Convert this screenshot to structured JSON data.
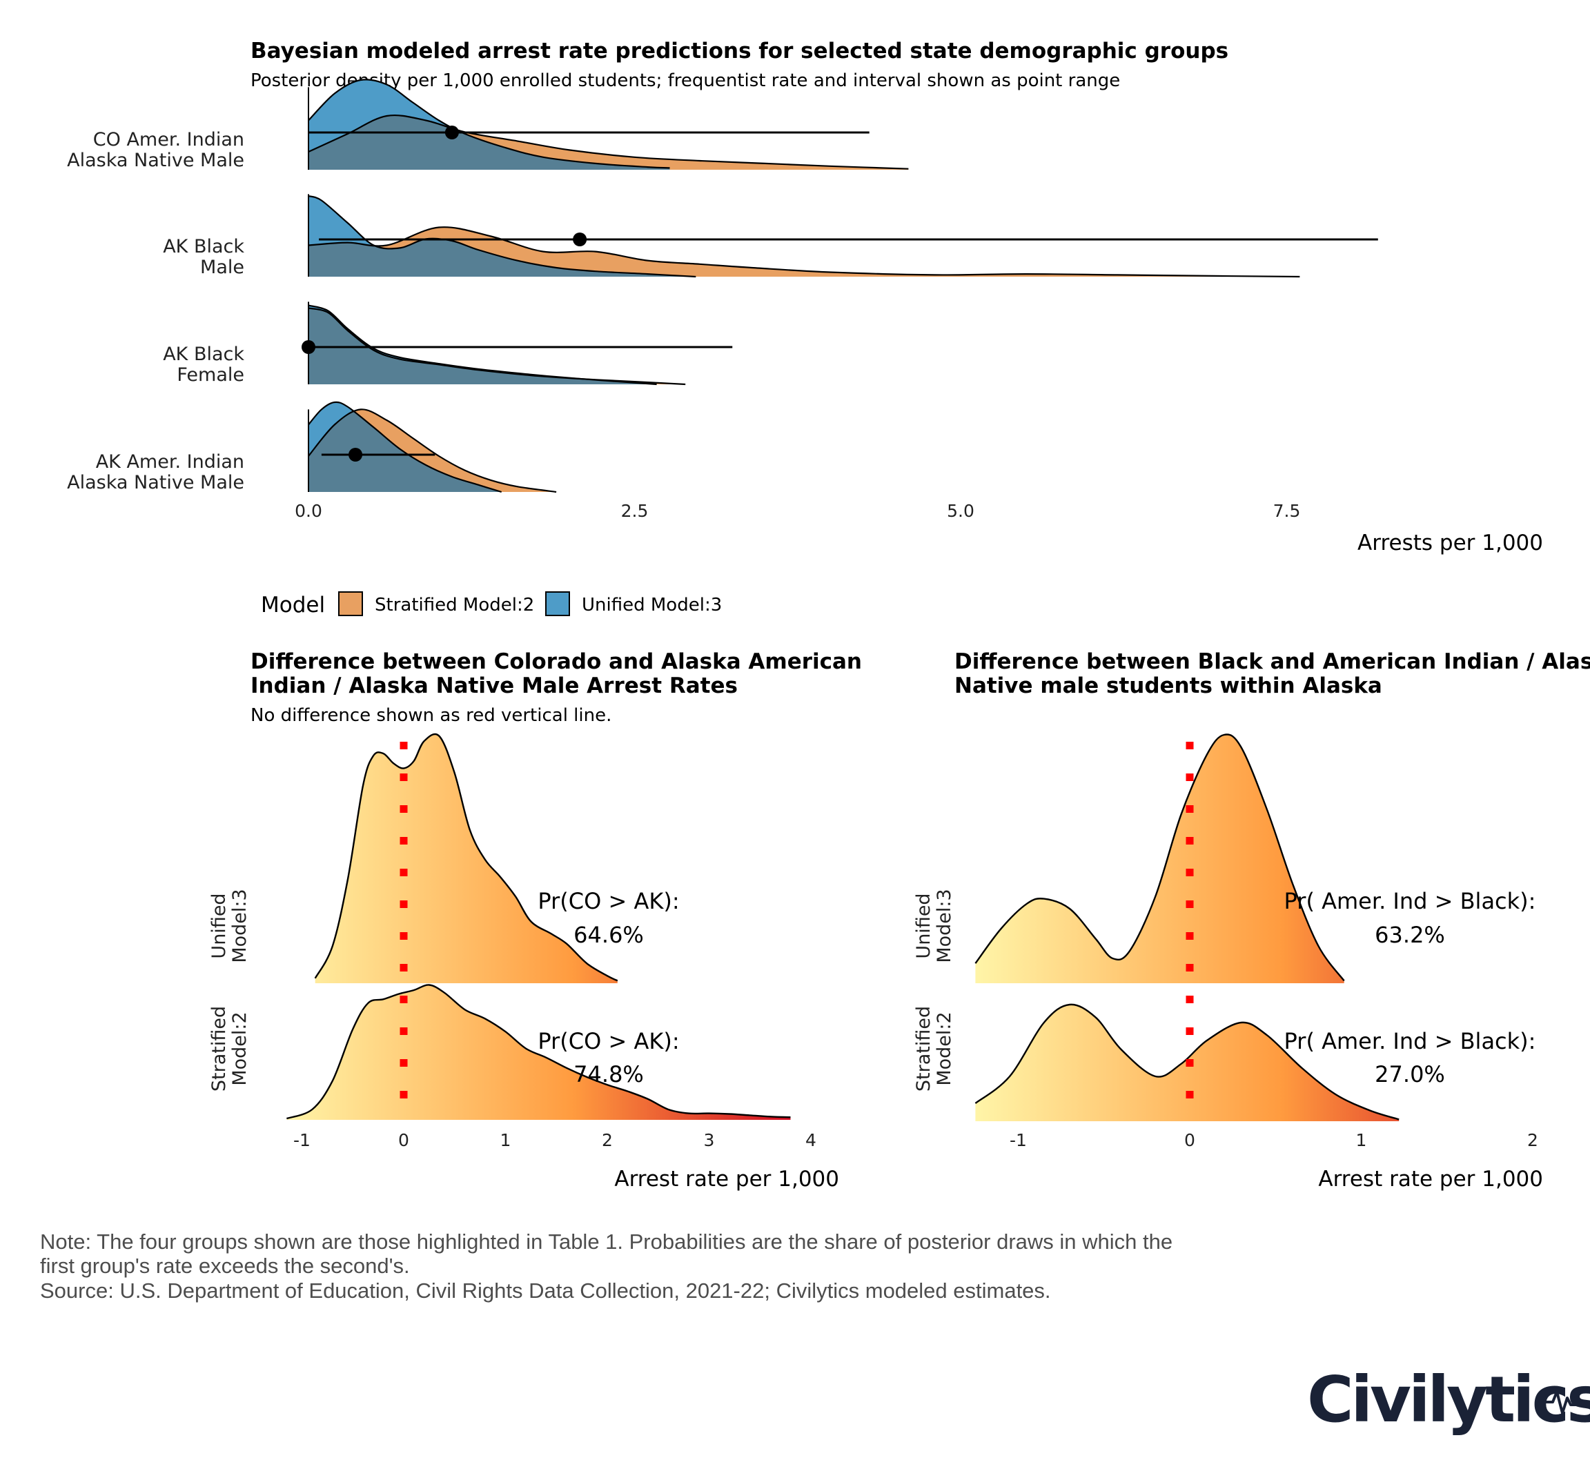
{
  "colors": {
    "stratified": "#e8a061",
    "unified": "#4e9cc8",
    "overlap": "#567f94",
    "zero_line": "#ff0000",
    "note_text": "#4d4d4d",
    "logo": "#1a2236",
    "gradient_low": "#fff5a8",
    "gradient_mid": "#ff9b3f",
    "gradient_high": "#cc0020"
  },
  "top_panel": {
    "title": "Bayesian modeled arrest rate predictions for selected state demographic groups",
    "subtitle": "Posterior density per 1,000 enrolled students; frequentist rate and interval shown as point range",
    "xlabel": "Arrests per 1,000"
  },
  "legend": {
    "title": "Model",
    "items": [
      {
        "label": "Stratified Model:2",
        "color": "#e8a061"
      },
      {
        "label": "Unified Model:3",
        "color": "#4e9cc8"
      }
    ]
  },
  "left_panel": {
    "title_line1": "Difference between Colorado and Alaska American",
    "title_line2": "Indian / Alaska Native Male Arrest Rates",
    "subtitle": "No difference shown as red vertical line.",
    "xlabel": "Arrest rate per 1,000",
    "row_labels": [
      [
        "Unified",
        "Model:3"
      ],
      [
        "Stratified",
        "Model:2"
      ]
    ],
    "prob_label": "Pr(CO > AK):",
    "prob_values": [
      "64.6%",
      "74.8%"
    ]
  },
  "right_panel": {
    "title_line1": "Difference between Black and American Indian / Alaska",
    "title_line2": "Native male students within Alaska",
    "xlabel": "Arrest rate per 1,000",
    "row_labels": [
      [
        "Unified",
        "Model:3"
      ],
      [
        "Stratified",
        "Model:2"
      ]
    ],
    "prob_label": "Pr( Amer. Ind > Black):",
    "prob_values": [
      "63.2%",
      "27.0%"
    ]
  },
  "footnote": {
    "line1": "Note: The four groups shown are those highlighted in Table 1. Probabilities are the share of posterior draws in which the",
    "line2": "first group's rate exceeds the second's.",
    "line3": "Source: U.S. Department of Education, Civil Rights Data Collection, 2021-22; Civilytics modeled estimates."
  },
  "logo": {
    "text": "Civilytics"
  },
  "chart_data": [
    {
      "type": "ridgeline",
      "title": "Bayesian modeled arrest rate predictions for selected state demographic groups",
      "subtitle": "Posterior density per 1,000 enrolled students; frequentist rate and interval shown as point range",
      "xlabel": "Arrests per 1,000",
      "xlim": [
        0,
        9.5
      ],
      "x_ticks": [
        0,
        2.5,
        5,
        7.5
      ],
      "x_tick_labels": [
        "0.0",
        "2.5",
        "5.0",
        "7.5"
      ],
      "groups": [
        {
          "label_lines": [
            "CO Amer. Indian",
            "Alaska Native Male"
          ],
          "point": 1.1,
          "interval": [
            0.0,
            4.3
          ],
          "stratified": [
            [
              0,
              0.2
            ],
            [
              0.3,
              0.4
            ],
            [
              0.6,
              0.6
            ],
            [
              0.9,
              0.55
            ],
            [
              1.2,
              0.42
            ],
            [
              1.6,
              0.32
            ],
            [
              2.0,
              0.22
            ],
            [
              2.5,
              0.14
            ],
            [
              3.0,
              0.1
            ],
            [
              3.5,
              0.07
            ],
            [
              4.0,
              0.04
            ],
            [
              4.6,
              0.01
            ]
          ],
          "unified": [
            [
              0,
              0.55
            ],
            [
              0.2,
              0.85
            ],
            [
              0.4,
              1.0
            ],
            [
              0.6,
              0.95
            ],
            [
              0.8,
              0.75
            ],
            [
              1.0,
              0.55
            ],
            [
              1.2,
              0.4
            ],
            [
              1.5,
              0.25
            ],
            [
              1.8,
              0.14
            ],
            [
              2.2,
              0.07
            ],
            [
              2.6,
              0.03
            ],
            [
              2.77,
              0.02
            ]
          ]
        },
        {
          "label_lines": [
            "AK Black",
            "Male"
          ],
          "point": 2.08,
          "interval": [
            0.08,
            8.2
          ],
          "stratified": [
            [
              0,
              0.35
            ],
            [
              0.3,
              0.38
            ],
            [
              0.6,
              0.35
            ],
            [
              1.0,
              0.55
            ],
            [
              1.4,
              0.45
            ],
            [
              1.8,
              0.28
            ],
            [
              2.2,
              0.28
            ],
            [
              2.6,
              0.18
            ],
            [
              3.0,
              0.14
            ],
            [
              3.4,
              0.1
            ],
            [
              4.0,
              0.05
            ],
            [
              4.8,
              0.02
            ],
            [
              5.5,
              0.03
            ],
            [
              6.2,
              0.02
            ],
            [
              7.0,
              0.008
            ],
            [
              7.6,
              0.0
            ]
          ],
          "unified": [
            [
              0,
              0.9
            ],
            [
              0.1,
              0.85
            ],
            [
              0.3,
              0.6
            ],
            [
              0.5,
              0.35
            ],
            [
              0.7,
              0.32
            ],
            [
              0.9,
              0.42
            ],
            [
              1.1,
              0.4
            ],
            [
              1.3,
              0.3
            ],
            [
              1.6,
              0.18
            ],
            [
              1.9,
              0.1
            ],
            [
              2.2,
              0.06
            ],
            [
              2.6,
              0.03
            ],
            [
              2.97,
              0.0
            ]
          ]
        },
        {
          "label_lines": [
            "AK Black",
            "Female"
          ],
          "point": 0.0,
          "interval": [
            0.0,
            3.25
          ],
          "stratified": [
            [
              0,
              0.85
            ],
            [
              0.15,
              0.8
            ],
            [
              0.3,
              0.6
            ],
            [
              0.5,
              0.38
            ],
            [
              0.7,
              0.28
            ],
            [
              1.0,
              0.22
            ],
            [
              1.3,
              0.16
            ],
            [
              1.7,
              0.1
            ],
            [
              2.1,
              0.06
            ],
            [
              2.5,
              0.03
            ],
            [
              2.89,
              0.0
            ]
          ],
          "unified": [
            [
              0,
              0.88
            ],
            [
              0.15,
              0.82
            ],
            [
              0.3,
              0.62
            ],
            [
              0.5,
              0.4
            ],
            [
              0.7,
              0.3
            ],
            [
              1.0,
              0.23
            ],
            [
              1.3,
              0.17
            ],
            [
              1.7,
              0.11
            ],
            [
              2.1,
              0.06
            ],
            [
              2.67,
              0.0
            ]
          ]
        },
        {
          "label_lines": [
            "AK Amer. Indian",
            "Alaska Native Male"
          ],
          "point": 0.36,
          "interval": [
            0.1,
            0.97
          ],
          "stratified": [
            [
              0,
              0.4
            ],
            [
              0.2,
              0.75
            ],
            [
              0.4,
              0.92
            ],
            [
              0.6,
              0.8
            ],
            [
              0.8,
              0.6
            ],
            [
              1.0,
              0.4
            ],
            [
              1.2,
              0.24
            ],
            [
              1.4,
              0.13
            ],
            [
              1.6,
              0.06
            ],
            [
              1.9,
              0.0
            ]
          ],
          "unified": [
            [
              0,
              0.75
            ],
            [
              0.1,
              0.92
            ],
            [
              0.2,
              1.0
            ],
            [
              0.3,
              0.95
            ],
            [
              0.5,
              0.72
            ],
            [
              0.7,
              0.48
            ],
            [
              0.9,
              0.3
            ],
            [
              1.1,
              0.17
            ],
            [
              1.3,
              0.08
            ],
            [
              1.48,
              0.0
            ]
          ]
        }
      ]
    },
    {
      "type": "density",
      "title": "Difference between Colorado and Alaska American Indian / Alaska Native Male Arrest Rates",
      "subtitle": "No difference shown as red vertical line.",
      "xlabel": "Arrest rate per 1,000",
      "xlim": [
        -1,
        4
      ],
      "x_ticks": [
        -1,
        0,
        1,
        2,
        3,
        4
      ],
      "reference_line": 0,
      "series": [
        {
          "name": "Unified Model:3",
          "probability_text": "Pr(CO > AK): 64.6%",
          "points": [
            [
              -0.87,
              0.02
            ],
            [
              -0.7,
              0.15
            ],
            [
              -0.55,
              0.42
            ],
            [
              -0.4,
              0.8
            ],
            [
              -0.3,
              0.92
            ],
            [
              -0.2,
              0.93
            ],
            [
              -0.1,
              0.89
            ],
            [
              0.0,
              0.87
            ],
            [
              0.1,
              0.9
            ],
            [
              0.2,
              0.98
            ],
            [
              0.35,
              1.0
            ],
            [
              0.5,
              0.85
            ],
            [
              0.65,
              0.62
            ],
            [
              0.8,
              0.5
            ],
            [
              0.95,
              0.43
            ],
            [
              1.1,
              0.35
            ],
            [
              1.25,
              0.25
            ],
            [
              1.45,
              0.2
            ],
            [
              1.6,
              0.16
            ],
            [
              1.8,
              0.08
            ],
            [
              2.0,
              0.03
            ],
            [
              2.1,
              0.01
            ]
          ]
        },
        {
          "name": "Stratified Model:2",
          "probability_text": "Pr(CO > AK): 74.8%",
          "points": [
            [
              -1.15,
              0.01
            ],
            [
              -0.9,
              0.08
            ],
            [
              -0.7,
              0.3
            ],
            [
              -0.5,
              0.7
            ],
            [
              -0.35,
              0.9
            ],
            [
              -0.2,
              0.93
            ],
            [
              -0.05,
              0.97
            ],
            [
              0.1,
              1.0
            ],
            [
              0.25,
              1.04
            ],
            [
              0.4,
              0.98
            ],
            [
              0.6,
              0.85
            ],
            [
              0.8,
              0.78
            ],
            [
              1.0,
              0.68
            ],
            [
              1.2,
              0.55
            ],
            [
              1.4,
              0.48
            ],
            [
              1.6,
              0.4
            ],
            [
              1.8,
              0.33
            ],
            [
              2.0,
              0.27
            ],
            [
              2.2,
              0.22
            ],
            [
              2.4,
              0.16
            ],
            [
              2.6,
              0.08
            ],
            [
              2.8,
              0.05
            ],
            [
              3.0,
              0.05
            ],
            [
              3.2,
              0.045
            ],
            [
              3.4,
              0.035
            ],
            [
              3.6,
              0.025
            ],
            [
              3.8,
              0.02
            ]
          ]
        }
      ]
    },
    {
      "type": "density",
      "title": "Difference between Black and American Indian / Alaska Native male students within Alaska",
      "xlabel": "Arrest rate per 1,000",
      "xlim": [
        -1.25,
        2
      ],
      "x_ticks": [
        -1,
        0,
        1,
        2
      ],
      "reference_line": 0,
      "series": [
        {
          "name": "Unified Model:3",
          "probability_text": "Pr( Amer. Ind > Black): 63.2%",
          "points": [
            [
              -1.25,
              0.08
            ],
            [
              -1.1,
              0.22
            ],
            [
              -0.95,
              0.32
            ],
            [
              -0.85,
              0.34
            ],
            [
              -0.7,
              0.3
            ],
            [
              -0.55,
              0.18
            ],
            [
              -0.45,
              0.1
            ],
            [
              -0.35,
              0.13
            ],
            [
              -0.2,
              0.35
            ],
            [
              -0.05,
              0.68
            ],
            [
              0.1,
              0.92
            ],
            [
              0.2,
              1.0
            ],
            [
              0.3,
              0.95
            ],
            [
              0.45,
              0.7
            ],
            [
              0.6,
              0.4
            ],
            [
              0.75,
              0.15
            ],
            [
              0.9,
              0.01
            ]
          ]
        },
        {
          "name": "Stratified Model:2",
          "probability_text": "Pr( Amer. Ind > Black): 27.0%",
          "points": [
            [
              -1.25,
              0.1
            ],
            [
              -1.05,
              0.25
            ],
            [
              -0.85,
              0.55
            ],
            [
              -0.7,
              0.65
            ],
            [
              -0.55,
              0.58
            ],
            [
              -0.4,
              0.4
            ],
            [
              -0.2,
              0.25
            ],
            [
              -0.05,
              0.32
            ],
            [
              0.1,
              0.45
            ],
            [
              0.3,
              0.55
            ],
            [
              0.45,
              0.48
            ],
            [
              0.65,
              0.3
            ],
            [
              0.85,
              0.15
            ],
            [
              1.05,
              0.06
            ],
            [
              1.22,
              0.01
            ]
          ]
        }
      ]
    }
  ]
}
